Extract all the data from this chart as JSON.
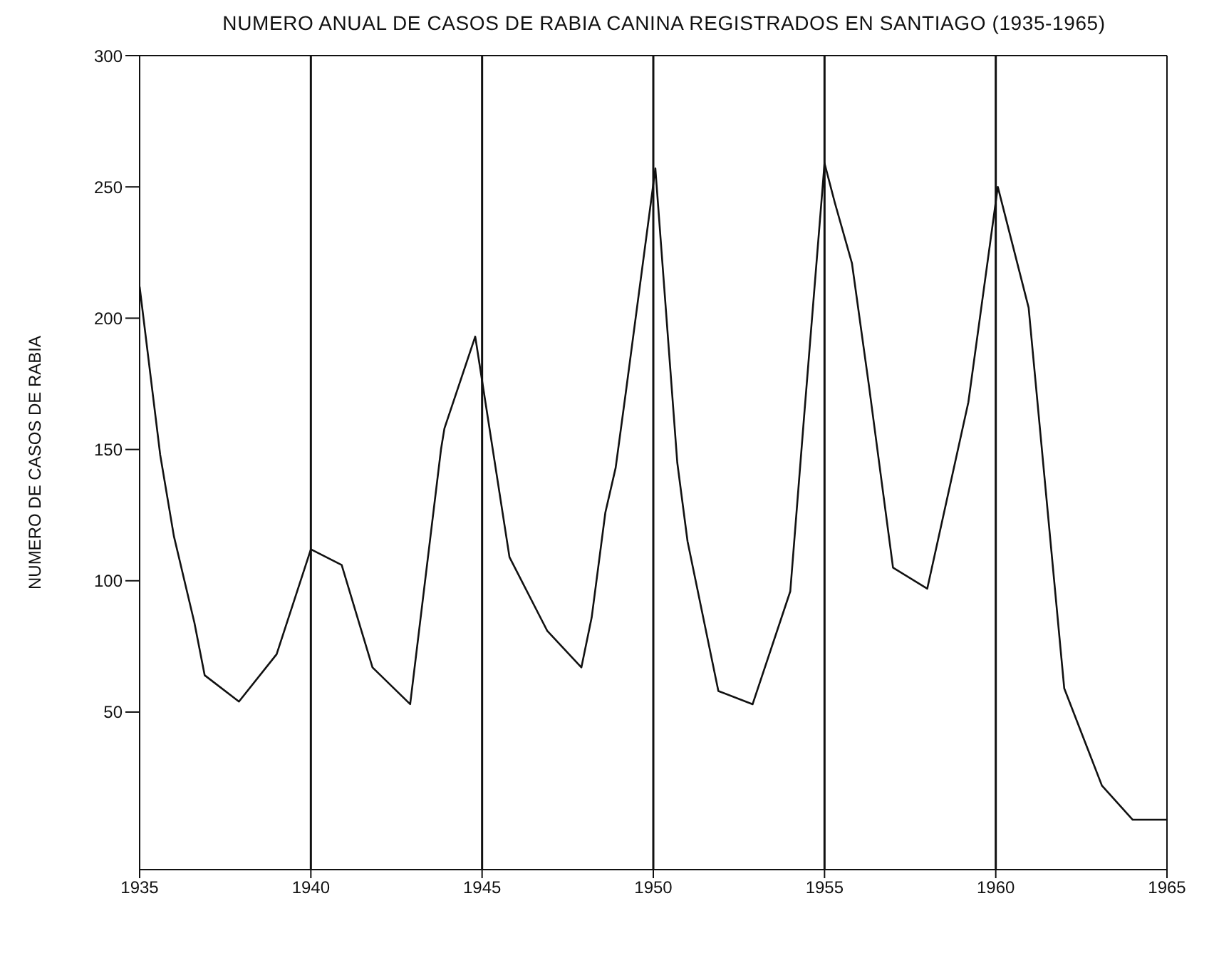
{
  "chart_data": {
    "type": "line",
    "title": "NUMERO ANUAL DE CASOS DE RABIA  CANINA REGISTRADOS EN SANTIAGO (1935-1965)",
    "ylabel": "NUMERO DE CASOS DE RABIA",
    "x": [
      1935.0,
      1935.6,
      1936.0,
      1936.6,
      1936.9,
      1937.9,
      1939.0,
      1940.0,
      1940.9,
      1941.8,
      1942.9,
      1943.8,
      1943.9,
      1944.8,
      1945.8,
      1946.9,
      1947.9,
      1948.2,
      1948.6,
      1948.9,
      1949.2,
      1950.06,
      1950.7,
      1951.0,
      1951.9,
      1952.9,
      1954.0,
      1954.4,
      1955.0,
      1955.3,
      1955.8,
      1956.3,
      1957.0,
      1958.0,
      1959.2,
      1960.06,
      1960.96,
      1962.0,
      1963.1,
      1964.0,
      1965.0
    ],
    "series": [
      {
        "color": "#111111",
        "values": [
          212,
          148,
          117,
          84,
          64,
          54,
          72,
          112,
          106,
          67,
          53,
          150,
          158,
          193,
          109,
          81,
          67,
          86,
          126,
          143,
          172,
          257,
          145,
          115,
          58,
          53,
          96,
          162,
          259,
          244,
          221,
          174,
          105,
          97,
          168,
          250,
          204,
          59,
          22,
          9,
          9
        ]
      }
    ],
    "xlim": [
      1935,
      1965
    ],
    "xticks": [
      1935,
      1940,
      1945,
      1950,
      1955,
      1960,
      1965
    ],
    "ylim": [
      -10,
      300
    ],
    "yticks": [
      50,
      100,
      150,
      200,
      250,
      300
    ],
    "grid": false,
    "legend": false,
    "marker": "none",
    "line_style": "solid",
    "ref_lines": [
      {
        "axis": "x",
        "value": 1940
      },
      {
        "axis": "x",
        "value": 1945
      },
      {
        "axis": "x",
        "value": 1950
      },
      {
        "axis": "x",
        "value": 1955
      },
      {
        "axis": "x",
        "value": 1960
      }
    ]
  }
}
